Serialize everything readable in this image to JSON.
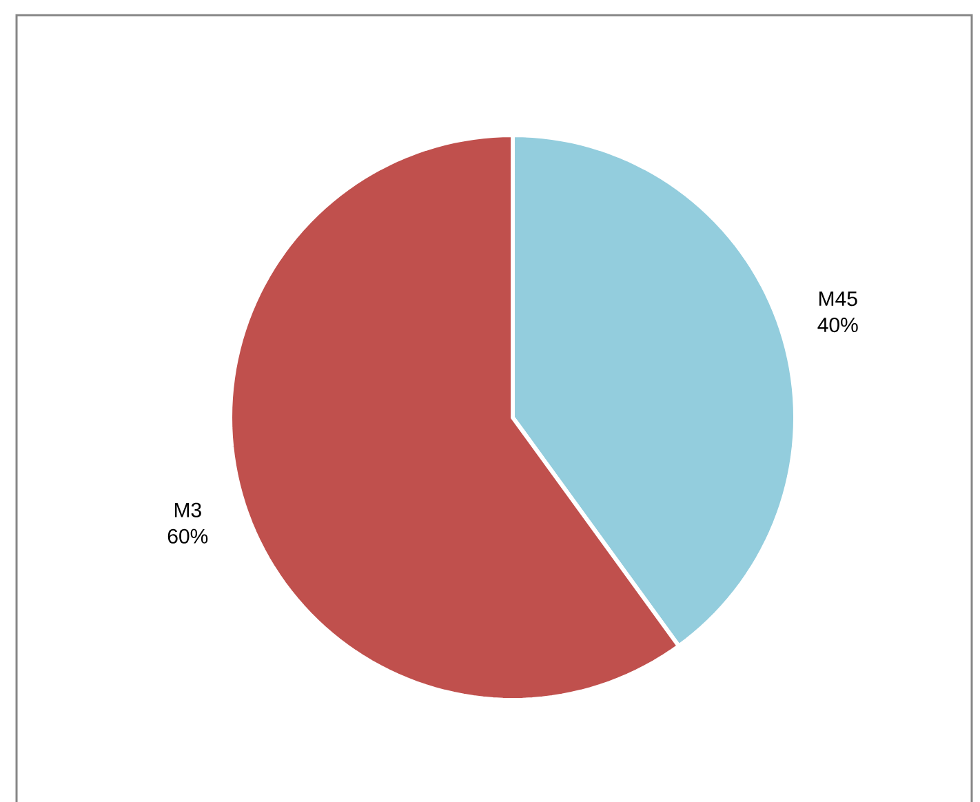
{
  "chart_data": {
    "type": "pie",
    "categories": [
      "M45",
      "M3"
    ],
    "values": [
      40,
      60
    ],
    "colors": [
      "#93cddd",
      "#c0504d"
    ],
    "value_labels": [
      "40%",
      "60%"
    ]
  }
}
